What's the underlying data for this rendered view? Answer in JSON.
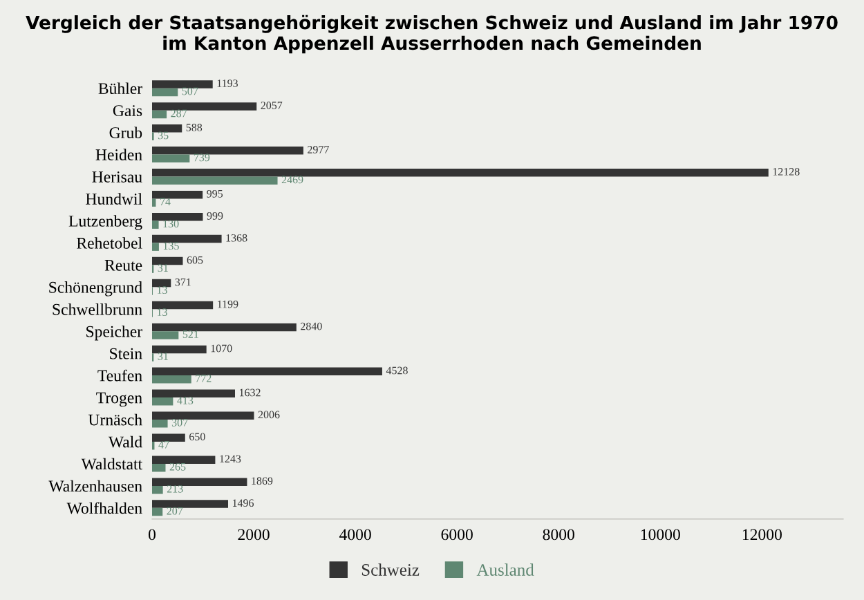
{
  "chart_data": {
    "type": "bar",
    "orientation": "horizontal",
    "title": "Vergleich der Staatsangehörigkeit zwischen Schweiz und Ausland im Jahr 1970\nim Kanton Appenzell Ausserrhoden nach Gemeinden",
    "categories": [
      "Bühler",
      "Gais",
      "Grub",
      "Heiden",
      "Herisau",
      "Hundwil",
      "Lutzenberg",
      "Rehetobel",
      "Reute",
      "Schönengrund",
      "Schwellbrunn",
      "Speicher",
      "Stein",
      "Teufen",
      "Trogen",
      "Urnäsch",
      "Wald",
      "Waldstatt",
      "Walzenhausen",
      "Wolfhalden"
    ],
    "series": [
      {
        "name": "Schweiz",
        "color": "#343434",
        "values": [
          1193,
          2057,
          588,
          2977,
          12128,
          995,
          999,
          1368,
          605,
          371,
          1199,
          2840,
          1070,
          4528,
          1632,
          2006,
          650,
          1243,
          1869,
          1496
        ]
      },
      {
        "name": "Ausland",
        "color": "#5f8772",
        "values": [
          507,
          287,
          35,
          739,
          2469,
          74,
          130,
          135,
          31,
          13,
          13,
          521,
          31,
          772,
          413,
          307,
          47,
          265,
          213,
          207
        ]
      }
    ],
    "xlim": [
      0,
      13600
    ],
    "xticks": [
      0,
      2000,
      4000,
      6000,
      8000,
      10000,
      12000
    ],
    "data_labels": true,
    "grid": false,
    "legend": "bottom"
  }
}
